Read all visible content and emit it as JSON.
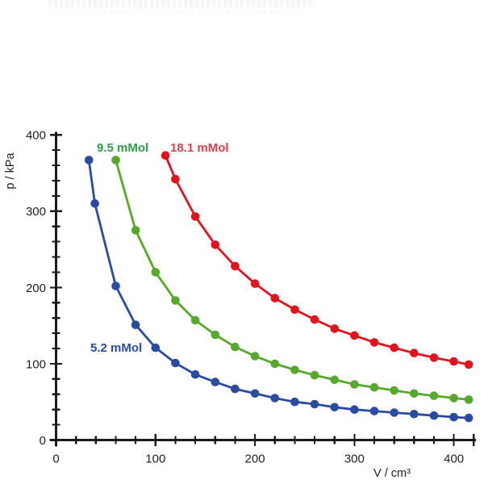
{
  "figure": {
    "background": "#ffffff",
    "axis_color": "#1b1b1b",
    "tick_label_color": "#1f1f1f"
  },
  "chart_data": {
    "type": "line",
    "title": "",
    "xlabel": "V / cm³",
    "ylabel": "p / kPa",
    "xlim": [
      0,
      420
    ],
    "ylim": [
      0,
      400
    ],
    "x_major_ticks": [
      0,
      100,
      200,
      300,
      400
    ],
    "y_major_ticks": [
      0,
      100,
      200,
      300,
      400
    ],
    "minor_tick_step_x": 20,
    "minor_tick_step_y": 20,
    "grid": false,
    "legend_position": "inline-labels",
    "series": [
      {
        "name": "5.2 mMol",
        "color": "#2A4B9E",
        "label_color": "#2A4B9E",
        "points": [
          [
            33,
            367
          ],
          [
            39,
            310
          ],
          [
            60,
            202
          ],
          [
            80,
            151
          ],
          [
            100,
            121
          ],
          [
            120,
            101
          ],
          [
            140,
            86
          ],
          [
            160,
            76
          ],
          [
            180,
            67
          ],
          [
            200,
            61
          ],
          [
            220,
            55
          ],
          [
            240,
            50
          ],
          [
            260,
            47
          ],
          [
            280,
            43
          ],
          [
            300,
            40
          ],
          [
            320,
            38
          ],
          [
            340,
            36
          ],
          [
            360,
            34
          ],
          [
            380,
            32
          ],
          [
            400,
            30
          ],
          [
            415,
            29
          ]
        ]
      },
      {
        "name": "9.5 mMol",
        "color": "#57A82C",
        "label_color": "#2AA148",
        "points": [
          [
            60,
            367
          ],
          [
            80,
            275
          ],
          [
            100,
            220
          ],
          [
            120,
            183
          ],
          [
            140,
            157
          ],
          [
            160,
            138
          ],
          [
            180,
            122
          ],
          [
            200,
            110
          ],
          [
            220,
            100
          ],
          [
            240,
            92
          ],
          [
            260,
            85
          ],
          [
            280,
            79
          ],
          [
            300,
            73
          ],
          [
            320,
            69
          ],
          [
            340,
            65
          ],
          [
            360,
            61
          ],
          [
            380,
            58
          ],
          [
            400,
            55
          ],
          [
            415,
            53
          ]
        ]
      },
      {
        "name": "18.1 mMol",
        "color": "#E2131C",
        "label_color": "#D94049",
        "points": [
          [
            110,
            373
          ],
          [
            120,
            342
          ],
          [
            140,
            293
          ],
          [
            160,
            256
          ],
          [
            180,
            228
          ],
          [
            200,
            205
          ],
          [
            220,
            186
          ],
          [
            240,
            171
          ],
          [
            260,
            158
          ],
          [
            280,
            146
          ],
          [
            300,
            137
          ],
          [
            320,
            128
          ],
          [
            340,
            121
          ],
          [
            360,
            114
          ],
          [
            380,
            108
          ],
          [
            400,
            103
          ],
          [
            415,
            99
          ]
        ]
      }
    ]
  }
}
